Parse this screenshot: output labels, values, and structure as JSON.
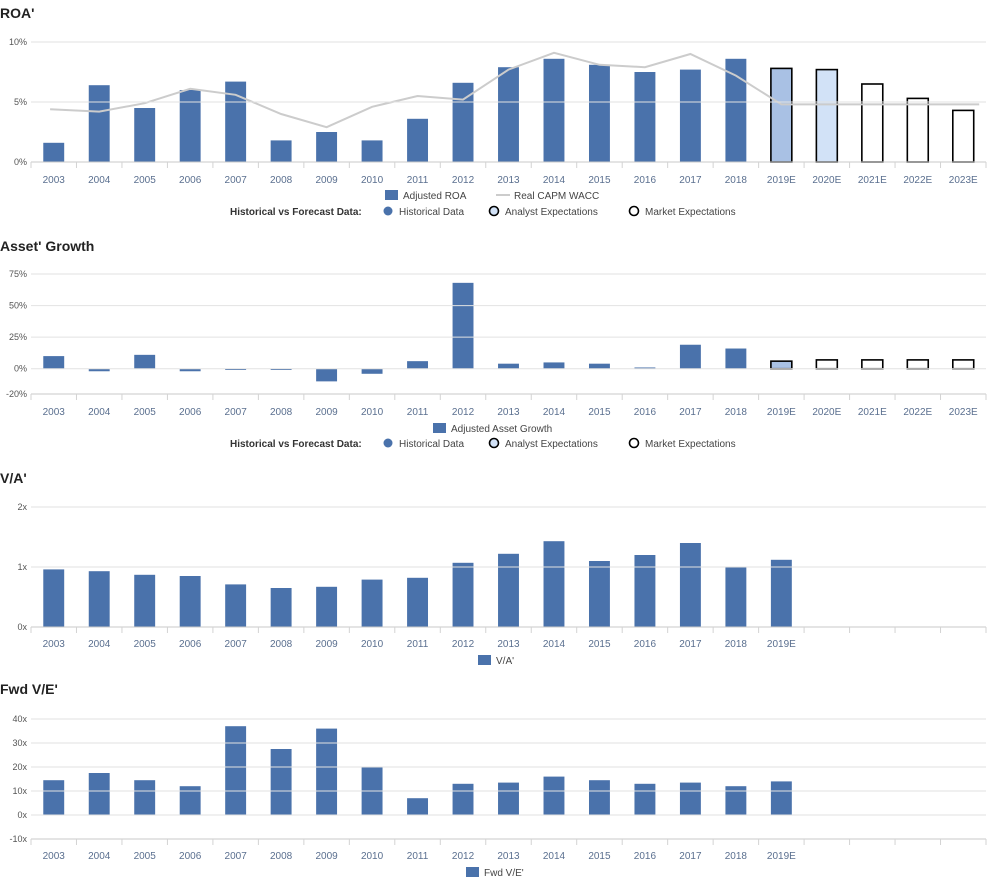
{
  "colors": {
    "historical": "#4a72ab",
    "analyst_2019": "#a9c1e4",
    "analyst_2020": "#d2e2f7",
    "market": "#ffffff",
    "outline": "#000000",
    "wacc_line": "#cccccc",
    "grid": "#e2e2e2"
  },
  "legend_common": {
    "label": "Historical vs Forecast Data:",
    "historical": "Historical Data",
    "analyst": "Analyst Expectations",
    "market": "Market Expectations"
  },
  "chart_data": [
    {
      "id": "roa",
      "type": "bar",
      "title": "ROA'",
      "categories": [
        "2003",
        "2004",
        "2005",
        "2006",
        "2007",
        "2008",
        "2009",
        "2010",
        "2011",
        "2012",
        "2013",
        "2014",
        "2015",
        "2016",
        "2017",
        "2018",
        "2019E",
        "2020E",
        "2021E",
        "2022E",
        "2023E"
      ],
      "series": [
        {
          "name": "Adjusted ROA",
          "type": "bar",
          "values": [
            1.6,
            6.4,
            4.5,
            6.0,
            6.7,
            1.8,
            2.5,
            1.8,
            3.6,
            6.6,
            7.9,
            8.6,
            8.1,
            7.5,
            7.7,
            8.6,
            7.8,
            7.7,
            6.5,
            5.3,
            4.3
          ]
        },
        {
          "name": "Real CAPM WACC",
          "type": "line",
          "values": [
            4.4,
            4.2,
            4.9,
            6.1,
            5.6,
            4.0,
            2.9,
            4.6,
            5.5,
            5.2,
            7.7,
            9.1,
            8.1,
            7.9,
            9.0,
            7.2,
            4.8,
            4.8,
            4.8,
            4.8,
            4.8
          ]
        }
      ],
      "forecast_types": [
        "h",
        "h",
        "h",
        "h",
        "h",
        "h",
        "h",
        "h",
        "h",
        "h",
        "h",
        "h",
        "h",
        "h",
        "h",
        "h",
        "a1",
        "a2",
        "m",
        "m",
        "m"
      ],
      "yticks": [
        0,
        5,
        10
      ],
      "ytick_labels": [
        "0%",
        "5%",
        "10%"
      ],
      "ylim": [
        0,
        10
      ],
      "show_forecast_legend": true
    },
    {
      "id": "asset_growth",
      "type": "bar",
      "title": "Asset' Growth",
      "categories": [
        "2003",
        "2004",
        "2005",
        "2006",
        "2007",
        "2008",
        "2009",
        "2010",
        "2011",
        "2012",
        "2013",
        "2014",
        "2015",
        "2016",
        "2017",
        "2018",
        "2019E",
        "2020E",
        "2021E",
        "2022E",
        "2023E"
      ],
      "series": [
        {
          "name": "Adjusted Asset Growth",
          "type": "bar",
          "values": [
            10,
            -2,
            11,
            -2,
            -1,
            -1,
            -10,
            -4,
            6,
            68,
            4,
            5,
            4,
            1,
            19,
            16,
            6,
            7,
            7,
            7,
            7
          ]
        }
      ],
      "forecast_types": [
        "h",
        "h",
        "h",
        "h",
        "h",
        "h",
        "h",
        "h",
        "h",
        "h",
        "h",
        "h",
        "h",
        "h",
        "h",
        "h",
        "a1",
        "m",
        "m",
        "m",
        "m"
      ],
      "yticks": [
        -20,
        0,
        25,
        50,
        75
      ],
      "ytick_labels": [
        "-20%",
        "0%",
        "25%",
        "50%",
        "75%"
      ],
      "ylim": [
        -20,
        75
      ],
      "show_forecast_legend": true
    },
    {
      "id": "va",
      "type": "bar",
      "title": "V/A'",
      "categories": [
        "2003",
        "2004",
        "2005",
        "2006",
        "2007",
        "2008",
        "2009",
        "2010",
        "2011",
        "2012",
        "2013",
        "2014",
        "2015",
        "2016",
        "2017",
        "2018",
        "2019E"
      ],
      "slots": 21,
      "series": [
        {
          "name": "V/A'",
          "type": "bar",
          "values": [
            0.96,
            0.93,
            0.87,
            0.85,
            0.71,
            0.65,
            0.67,
            0.79,
            0.82,
            1.07,
            1.22,
            1.43,
            1.1,
            1.2,
            1.4,
            1.0,
            1.12
          ]
        }
      ],
      "yticks": [
        0,
        1,
        2
      ],
      "ytick_labels": [
        "0x",
        "1x",
        "2x"
      ],
      "ylim": [
        0,
        2
      ],
      "show_forecast_legend": false
    },
    {
      "id": "fwd_ve",
      "type": "bar",
      "title": "Fwd V/E'",
      "categories": [
        "2003",
        "2004",
        "2005",
        "2006",
        "2007",
        "2008",
        "2009",
        "2010",
        "2011",
        "2012",
        "2013",
        "2014",
        "2015",
        "2016",
        "2017",
        "2018",
        "2019E"
      ],
      "slots": 21,
      "series": [
        {
          "name": "Fwd V/E'",
          "type": "bar",
          "values": [
            14.5,
            17.5,
            14.5,
            12,
            37,
            27.5,
            36,
            20,
            7,
            13,
            13.5,
            16,
            14.5,
            13,
            13.5,
            12,
            14
          ]
        }
      ],
      "yticks": [
        -10,
        0,
        10,
        20,
        30,
        40
      ],
      "ytick_labels": [
        "-10x",
        "0x",
        "10x",
        "20x",
        "30x",
        "40x"
      ],
      "ylim": [
        -10,
        40
      ],
      "show_forecast_legend": false
    }
  ]
}
